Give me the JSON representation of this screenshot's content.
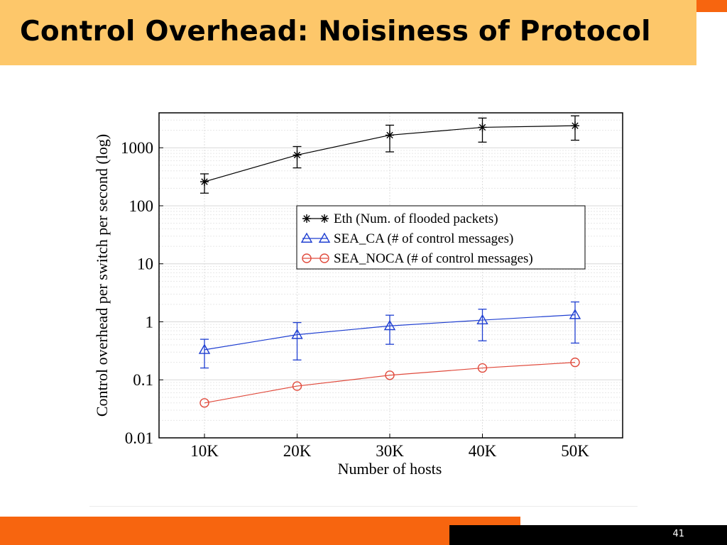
{
  "slide": {
    "title": "Control Overhead: Noisiness of Protocol",
    "page_number": "41"
  },
  "colors": {
    "accent_orange": "#f7650f",
    "title_band": "#fdc76a",
    "footer_black": "#000000"
  },
  "chart_data": {
    "type": "line",
    "title": "",
    "xlabel": "Number of hosts",
    "ylabel": "Control overhead per switch per second (log)",
    "y_scale": "log",
    "ylim": [
      0.01,
      4000
    ],
    "categories": [
      "10K",
      "20K",
      "30K",
      "40K",
      "50K"
    ],
    "y_ticks": [
      {
        "value": 0.01,
        "label": "0.01"
      },
      {
        "value": 0.1,
        "label": "0.1"
      },
      {
        "value": 1,
        "label": "1"
      },
      {
        "value": 10,
        "label": "10"
      },
      {
        "value": 100,
        "label": "100"
      },
      {
        "value": 1000,
        "label": "1000"
      }
    ],
    "grid": true,
    "legend_position": "center-right",
    "series": [
      {
        "name": "Eth (Num. of flooded packets)",
        "color": "#000000",
        "marker": "asterisk",
        "values": [
          260,
          750,
          1650,
          2250,
          2400
        ],
        "error_low": [
          165,
          450,
          850,
          1250,
          1350
        ],
        "error_high": [
          355,
          1050,
          2450,
          3250,
          3550
        ]
      },
      {
        "name": "SEA_CA (# of control messages)",
        "color": "#1f3fd1",
        "marker": "triangle",
        "values": [
          0.33,
          0.6,
          0.85,
          1.07,
          1.32
        ],
        "error_low": [
          0.16,
          0.22,
          0.41,
          0.47,
          0.43
        ],
        "error_high": [
          0.5,
          0.97,
          1.3,
          1.65,
          2.2
        ]
      },
      {
        "name": "SEA_NOCA (# of control messages)",
        "color": "#e04a3c",
        "marker": "circle",
        "values": [
          0.04,
          0.078,
          0.12,
          0.16,
          0.2
        ]
      }
    ]
  }
}
